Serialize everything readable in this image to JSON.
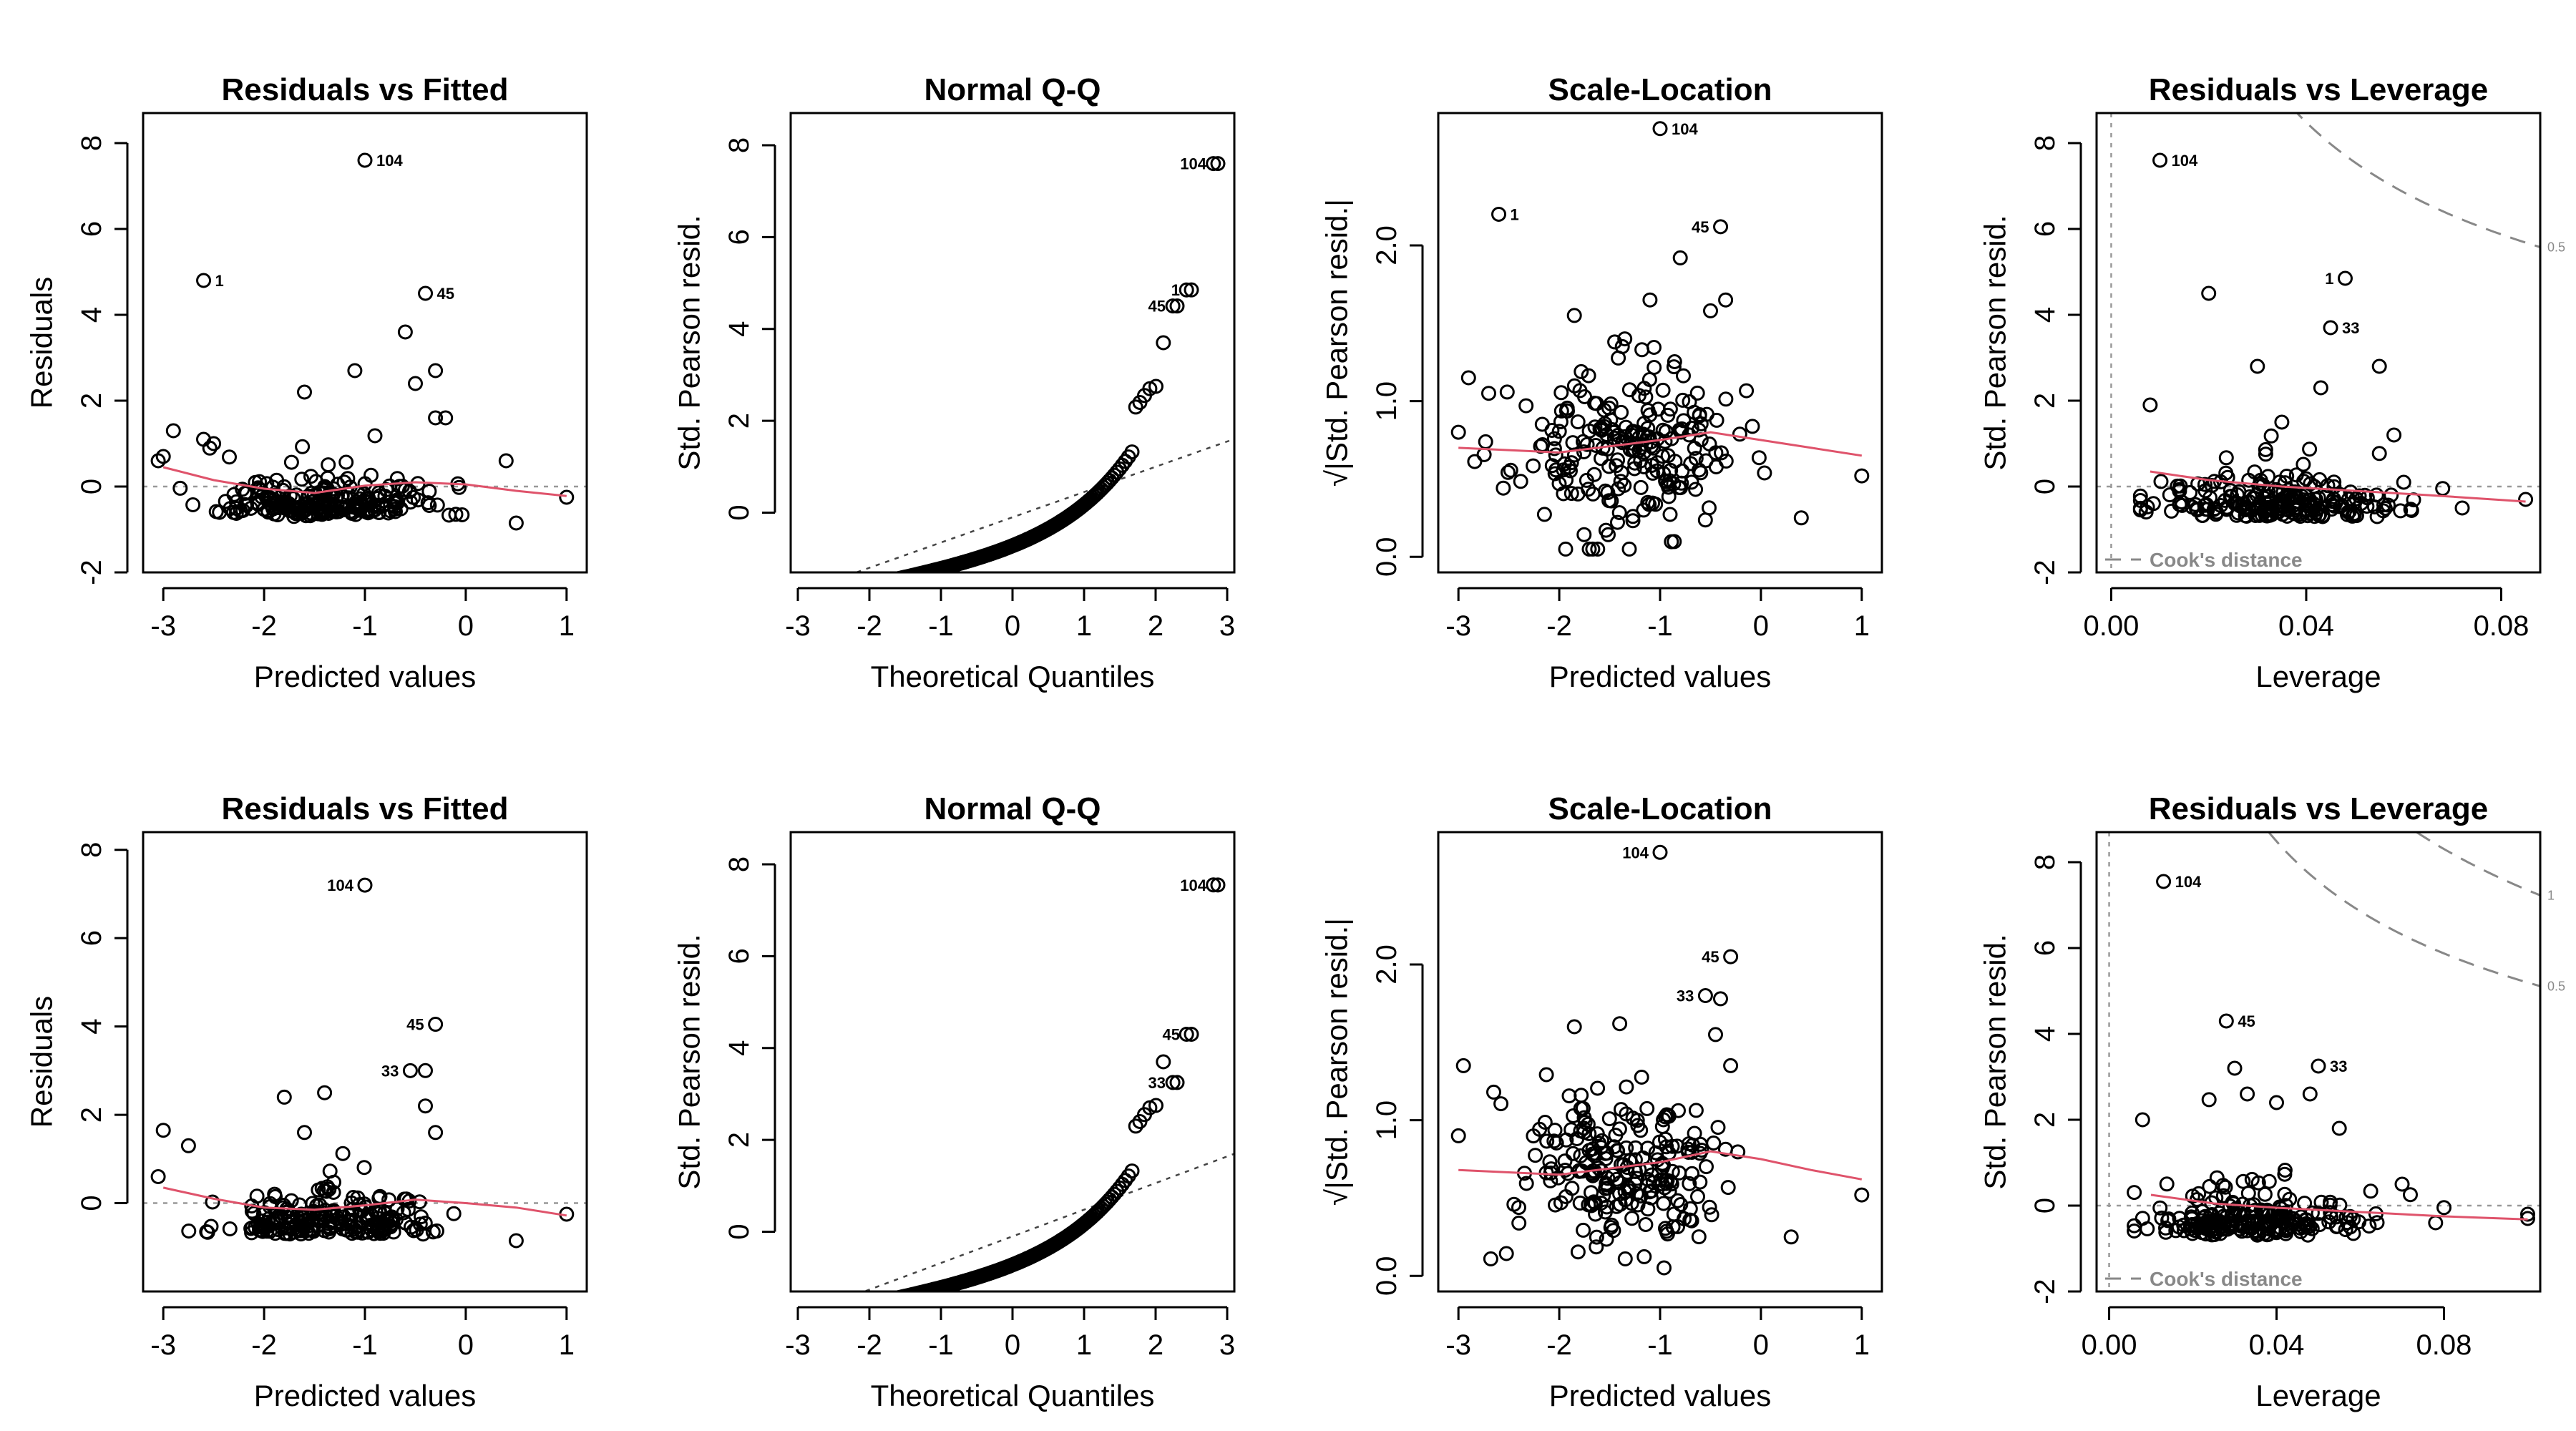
{
  "chart_data": [
    {
      "type": "scatter",
      "title": "Residuals vs Fitted",
      "xlabel": "Predicted values",
      "ylabel": "Residuals",
      "xlim": [
        -3.2,
        1.2
      ],
      "ylim": [
        -2,
        8.7
      ],
      "xticks": [
        -3,
        -2,
        -1,
        0,
        1
      ],
      "yticks": [
        -2,
        0,
        2,
        4,
        6,
        8
      ],
      "ref_line": {
        "kind": "h",
        "value": 0
      },
      "smooth": [
        [
          -3,
          0.45
        ],
        [
          -2.5,
          0.15
        ],
        [
          -2,
          -0.05
        ],
        [
          -1.5,
          -0.15
        ],
        [
          -1,
          0.02
        ],
        [
          -0.5,
          0.1
        ],
        [
          0,
          0.05
        ],
        [
          0.5,
          -0.1
        ],
        [
          1,
          -0.22
        ]
      ],
      "labeled_points": [
        {
          "x": -1.0,
          "y": 7.6,
          "label": "104"
        },
        {
          "x": -2.6,
          "y": 4.8,
          "label": "1"
        },
        {
          "x": -0.4,
          "y": 4.5,
          "label": "45"
        }
      ],
      "n_points": 220,
      "seed": 11,
      "extra_points": [
        [
          -1.1,
          2.7
        ],
        [
          -0.6,
          3.6
        ],
        [
          -0.5,
          2.4
        ],
        [
          -0.3,
          2.7
        ],
        [
          -1.6,
          2.2
        ],
        [
          -3.0,
          0.7
        ],
        [
          -3.05,
          0.6
        ],
        [
          -2.9,
          1.3
        ],
        [
          -2.6,
          1.1
        ],
        [
          -2.5,
          1.0
        ],
        [
          -0.3,
          1.6
        ],
        [
          -0.2,
          1.6
        ],
        [
          1.0,
          -0.25
        ],
        [
          0.5,
          -0.85
        ],
        [
          0.4,
          0.6
        ]
      ]
    },
    {
      "type": "scatter",
      "title": "Normal Q-Q",
      "xlabel": "Theoretical Quantiles",
      "ylabel": "Std. Pearson resid.",
      "xlim": [
        -3.1,
        3.1
      ],
      "ylim": [
        -1.3,
        8.7
      ],
      "xticks": [
        -3,
        -2,
        -1,
        0,
        1,
        2,
        3
      ],
      "yticks": [
        0,
        2,
        4,
        6,
        8
      ],
      "ref_line": {
        "kind": "qq",
        "slope": 0.55,
        "intercept": -0.1
      },
      "labeled_points": [
        {
          "x": 2.87,
          "y": 7.6,
          "label": "104",
          "pos": "left"
        },
        {
          "x": 2.5,
          "y": 4.85,
          "label": "1",
          "pos": "left"
        },
        {
          "x": 2.3,
          "y": 4.5,
          "label": "45",
          "pos": "left"
        }
      ],
      "n_points": 200
    },
    {
      "type": "scatter",
      "title": "Scale-Location",
      "xlabel": "Predicted values",
      "ylabel": "√|Std. Pearson resid.|",
      "xlim": [
        -3.2,
        1.2
      ],
      "ylim": [
        -0.1,
        2.85
      ],
      "xticks": [
        -3,
        -2,
        -1,
        0,
        1
      ],
      "yticks": [
        0.0,
        1.0,
        2.0
      ],
      "ytick_labels": [
        "0.0",
        "1.0",
        "2.0"
      ],
      "smooth": [
        [
          -3,
          0.7
        ],
        [
          -2,
          0.67
        ],
        [
          -1,
          0.75
        ],
        [
          -0.5,
          0.8
        ],
        [
          0,
          0.75
        ],
        [
          0.5,
          0.7
        ],
        [
          1,
          0.65
        ]
      ],
      "labeled_points": [
        {
          "x": -1.0,
          "y": 2.75,
          "label": "104"
        },
        {
          "x": -2.6,
          "y": 2.2,
          "label": "1"
        },
        {
          "x": -0.4,
          "y": 2.12,
          "label": "45",
          "pos": "left"
        }
      ],
      "n_points": 220,
      "seed": 23,
      "extra_points": [
        [
          -0.8,
          1.92
        ],
        [
          -1.85,
          1.55
        ],
        [
          -1.1,
          1.65
        ],
        [
          -0.35,
          1.65
        ],
        [
          -0.5,
          1.58
        ],
        [
          -1.35,
          1.4
        ],
        [
          -1.45,
          1.38
        ],
        [
          -2.9,
          1.15
        ],
        [
          -2.7,
          1.05
        ],
        [
          -3.0,
          0.8
        ],
        [
          1.0,
          0.52
        ],
        [
          0.4,
          0.25
        ]
      ]
    },
    {
      "type": "scatter",
      "title": "Residuals vs Leverage",
      "xlabel": "Leverage",
      "ylabel": "Std. Pearson resid.",
      "xlim": [
        -0.003,
        0.088
      ],
      "ylim": [
        -2,
        8.7
      ],
      "xticks": [
        0.0,
        0.04,
        0.08
      ],
      "xtick_labels": [
        "0.00",
        "0.04",
        "0.08"
      ],
      "yticks": [
        -2,
        0,
        2,
        4,
        6,
        8
      ],
      "ref_line": {
        "kind": "both",
        "value": 0
      },
      "smooth": [
        [
          0.008,
          0.35
        ],
        [
          0.02,
          0.15
        ],
        [
          0.035,
          0.0
        ],
        [
          0.05,
          -0.1
        ],
        [
          0.065,
          -0.2
        ],
        [
          0.085,
          -0.35
        ]
      ],
      "cook": {
        "label": "Cook's distance",
        "p": 6,
        "levels": [
          0.5
        ],
        "level_labels": [
          "0.5"
        ]
      },
      "labeled_points": [
        {
          "x": 0.01,
          "y": 7.6,
          "label": "104"
        },
        {
          "x": 0.048,
          "y": 4.85,
          "label": "1",
          "pos": "left"
        },
        {
          "x": 0.045,
          "y": 3.7,
          "label": "33"
        }
      ],
      "n_points": 220,
      "seed": 37,
      "extra_points": [
        [
          0.02,
          4.5
        ],
        [
          0.03,
          2.8
        ],
        [
          0.043,
          2.3
        ],
        [
          0.055,
          2.8
        ],
        [
          0.008,
          1.9
        ],
        [
          0.035,
          1.5
        ],
        [
          0.058,
          1.2
        ],
        [
          0.06,
          0.1
        ],
        [
          0.072,
          -0.5
        ],
        [
          0.085,
          -0.3
        ]
      ]
    },
    {
      "type": "scatter",
      "title": "Residuals vs Fitted",
      "xlabel": "Predicted values",
      "ylabel": "Residuals",
      "xlim": [
        -3.2,
        1.2
      ],
      "ylim": [
        -2,
        8.4
      ],
      "xticks": [
        -3,
        -2,
        -1,
        0,
        1
      ],
      "yticks": [
        0,
        2,
        4,
        6,
        8
      ],
      "ref_line": {
        "kind": "h",
        "value": 0
      },
      "smooth": [
        [
          -3,
          0.35
        ],
        [
          -2.5,
          0.1
        ],
        [
          -2,
          -0.1
        ],
        [
          -1.5,
          -0.15
        ],
        [
          -1,
          -0.05
        ],
        [
          -0.5,
          0.08
        ],
        [
          0,
          0.0
        ],
        [
          0.5,
          -0.1
        ],
        [
          1,
          -0.28
        ]
      ],
      "labeled_points": [
        {
          "x": -1.0,
          "y": 7.2,
          "label": "104",
          "pos": "left"
        },
        {
          "x": -0.3,
          "y": 4.05,
          "label": "45",
          "pos": "left"
        },
        {
          "x": -0.55,
          "y": 3.0,
          "label": "33",
          "pos": "left"
        }
      ],
      "n_points": 220,
      "seed": 53,
      "extra_points": [
        [
          -0.4,
          3.0
        ],
        [
          -1.4,
          2.5
        ],
        [
          -1.8,
          2.4
        ],
        [
          -0.4,
          2.2
        ],
        [
          -3.05,
          0.6
        ],
        [
          -3.0,
          1.65
        ],
        [
          -2.75,
          1.3
        ],
        [
          -1.6,
          1.6
        ],
        [
          -0.3,
          1.6
        ],
        [
          1.0,
          -0.25
        ],
        [
          0.5,
          -0.85
        ]
      ]
    },
    {
      "type": "scatter",
      "title": "Normal Q-Q",
      "xlabel": "Theoretical Quantiles",
      "ylabel": "Std. Pearson resid.",
      "xlim": [
        -3.1,
        3.1
      ],
      "ylim": [
        -1.3,
        8.7
      ],
      "xticks": [
        -3,
        -2,
        -1,
        0,
        1,
        2,
        3
      ],
      "yticks": [
        0,
        2,
        4,
        6,
        8
      ],
      "ref_line": {
        "kind": "qq",
        "slope": 0.58,
        "intercept": -0.1
      },
      "labeled_points": [
        {
          "x": 2.87,
          "y": 7.55,
          "label": "104",
          "pos": "left"
        },
        {
          "x": 2.5,
          "y": 4.3,
          "label": "45",
          "pos": "left"
        },
        {
          "x": 2.3,
          "y": 3.25,
          "label": "33",
          "pos": "left"
        }
      ],
      "n_points": 200
    },
    {
      "type": "scatter",
      "title": "Scale-Location",
      "xlabel": "Predicted values",
      "ylabel": "√|Std. Pearson resid.|",
      "xlim": [
        -3.2,
        1.2
      ],
      "ylim": [
        -0.1,
        2.85
      ],
      "xticks": [
        -3,
        -2,
        -1,
        0,
        1
      ],
      "yticks": [
        0.0,
        1.0,
        2.0
      ],
      "ytick_labels": [
        "0.0",
        "1.0",
        "2.0"
      ],
      "smooth": [
        [
          -3,
          0.68
        ],
        [
          -2,
          0.65
        ],
        [
          -1,
          0.73
        ],
        [
          -0.5,
          0.8
        ],
        [
          0,
          0.75
        ],
        [
          0.5,
          0.68
        ],
        [
          1,
          0.62
        ]
      ],
      "labeled_points": [
        {
          "x": -1.0,
          "y": 2.72,
          "label": "104",
          "pos": "left"
        },
        {
          "x": -0.3,
          "y": 2.05,
          "label": "45",
          "pos": "left"
        },
        {
          "x": -0.55,
          "y": 1.8,
          "label": "33",
          "pos": "left"
        }
      ],
      "n_points": 220,
      "seed": 71,
      "extra_points": [
        [
          -0.4,
          1.78
        ],
        [
          -0.45,
          1.55
        ],
        [
          -1.4,
          1.62
        ],
        [
          -1.85,
          1.6
        ],
        [
          -2.95,
          1.35
        ],
        [
          -2.65,
          1.18
        ],
        [
          -3.0,
          0.9
        ],
        [
          -0.3,
          1.35
        ],
        [
          1.0,
          0.52
        ],
        [
          0.3,
          0.25
        ]
      ]
    },
    {
      "type": "scatter",
      "title": "Residuals vs Leverage",
      "xlabel": "Leverage",
      "ylabel": "Std. Pearson resid.",
      "xlim": [
        -0.003,
        0.103
      ],
      "ylim": [
        -2,
        8.7
      ],
      "xticks": [
        0.0,
        0.04,
        0.08
      ],
      "xtick_labels": [
        "0.00",
        "0.04",
        "0.08"
      ],
      "yticks": [
        -2,
        0,
        2,
        4,
        6,
        8
      ],
      "ref_line": {
        "kind": "both",
        "value": 0
      },
      "smooth": [
        [
          0.01,
          0.25
        ],
        [
          0.025,
          0.05
        ],
        [
          0.04,
          -0.05
        ],
        [
          0.06,
          -0.15
        ],
        [
          0.08,
          -0.25
        ],
        [
          0.1,
          -0.32
        ]
      ],
      "cook": {
        "label": "Cook's distance",
        "p": 6,
        "levels": [
          0.5,
          1
        ],
        "level_labels": [
          "0.5",
          "1"
        ]
      },
      "labeled_points": [
        {
          "x": 0.013,
          "y": 7.55,
          "label": "104"
        },
        {
          "x": 0.028,
          "y": 4.3,
          "label": "45"
        },
        {
          "x": 0.05,
          "y": 3.25,
          "label": "33"
        }
      ],
      "n_points": 220,
      "seed": 89,
      "extra_points": [
        [
          0.03,
          3.2
        ],
        [
          0.033,
          2.6
        ],
        [
          0.04,
          2.4
        ],
        [
          0.055,
          1.8
        ],
        [
          0.008,
          2.0
        ],
        [
          0.048,
          2.6
        ],
        [
          0.07,
          0.5
        ],
        [
          0.1,
          -0.2
        ],
        [
          0.1,
          -0.3
        ],
        [
          0.078,
          -0.4
        ]
      ]
    }
  ]
}
